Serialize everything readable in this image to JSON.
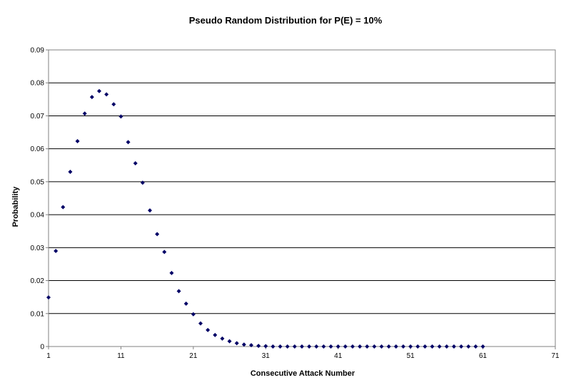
{
  "chart_data": {
    "type": "scatter",
    "title": "Pseudo Random Distribution for P(E) = 10%",
    "xlabel": "Consecutive Attack Number",
    "ylabel": "Probability",
    "xlim": [
      1,
      71
    ],
    "ylim": [
      0,
      0.09
    ],
    "x_ticks": [
      1,
      11,
      21,
      31,
      41,
      51,
      61,
      71
    ],
    "y_ticks": [
      0,
      0.01,
      0.02,
      0.03,
      0.04,
      0.05,
      0.06,
      0.07,
      0.08,
      0.09
    ],
    "x_tick_labels": [
      "1",
      "11",
      "21",
      "31",
      "41",
      "51",
      "61",
      "71"
    ],
    "y_tick_labels": [
      "0",
      "0.01",
      "0.02",
      "0.03",
      "0.04",
      "0.05",
      "0.06",
      "0.07",
      "0.08",
      "0.09"
    ],
    "grid": "horizontal",
    "marker_color": "#000066",
    "series": [
      {
        "name": "Probability",
        "x": [
          1,
          2,
          3,
          4,
          5,
          6,
          7,
          8,
          9,
          10,
          11,
          12,
          13,
          14,
          15,
          16,
          17,
          18,
          19,
          20,
          21,
          22,
          23,
          24,
          25,
          26,
          27,
          28,
          29,
          30,
          31,
          32,
          33,
          34,
          35,
          36,
          37,
          38,
          39,
          40,
          41,
          42,
          43,
          44,
          45,
          46,
          47,
          48,
          49,
          50,
          51,
          52,
          53,
          54,
          55,
          56,
          57,
          58,
          59,
          60,
          61
        ],
        "values": [
          0.0149,
          0.029,
          0.0423,
          0.053,
          0.0623,
          0.0707,
          0.0757,
          0.0775,
          0.0765,
          0.0735,
          0.0698,
          0.062,
          0.0556,
          0.0497,
          0.0413,
          0.0341,
          0.0287,
          0.0223,
          0.0168,
          0.013,
          0.0098,
          0.007,
          0.005,
          0.0035,
          0.0024,
          0.0016,
          0.001,
          0.0006,
          0.0004,
          0.0002,
          0.0001,
          0,
          0,
          0,
          0,
          0,
          0,
          0,
          0,
          0,
          0,
          0,
          0,
          0,
          0,
          0,
          0,
          0,
          0,
          0,
          0,
          0,
          0,
          0,
          0,
          0,
          0,
          0,
          0,
          0,
          0
        ]
      }
    ]
  }
}
